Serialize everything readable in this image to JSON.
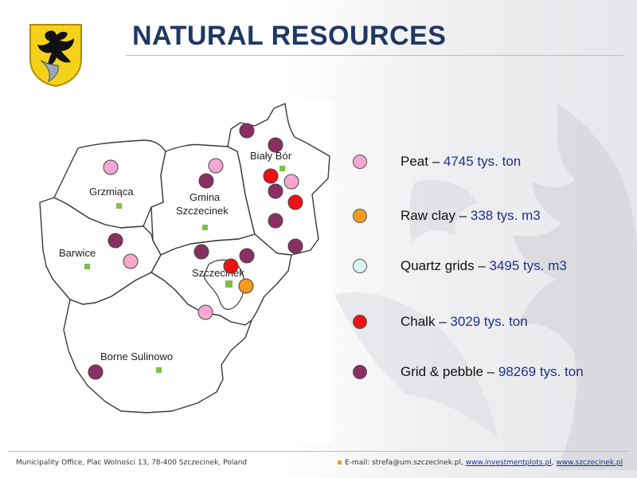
{
  "title": "NATURAL RESOURCES",
  "map": {
    "labels": {
      "bialy_bor": "Biały Bór",
      "grzmiaca": "Grzmiąca",
      "gmina_szczecinek": "Gmina\nSzczecinek",
      "gmina_line1": "Gmina",
      "gmina_line2": "Szczecinek",
      "barwice": "Barwice",
      "szczecinek": "Szczecinek",
      "borne_sulinowo": "Borne Sulinowo"
    }
  },
  "legend": [
    {
      "name": "Peat",
      "value": "4745 tys. ton",
      "color": "#f7a8d0"
    },
    {
      "name": "Raw clay",
      "value": "338 tys. m3",
      "color": "#f59a1d"
    },
    {
      "name": "Quartz grids",
      "value": "3495 tys. m3",
      "color": "#ddf4f4"
    },
    {
      "name": "Chalk",
      "value": "3029 tys. ton",
      "color": "#ee1111"
    },
    {
      "name": "Grid & pebble",
      "value": "98269 tys. ton",
      "color": "#8a2f62"
    }
  ],
  "legend_separator": " – ",
  "footer": {
    "address": "Municipality Office, Plac Wolności 13, 78-400 Szczecinek, Poland",
    "email_prefix": "E-mail: strefa@um.szczecinek.pl, ",
    "link1": "www.investmentplots.pl",
    "separator": ", ",
    "link2": "www.szczecinek.pl"
  },
  "colors": {
    "title": "#1f3864",
    "seat_marker": "#7bc142",
    "crest_yellow": "#f4d11a",
    "crest_black": "#111111"
  }
}
